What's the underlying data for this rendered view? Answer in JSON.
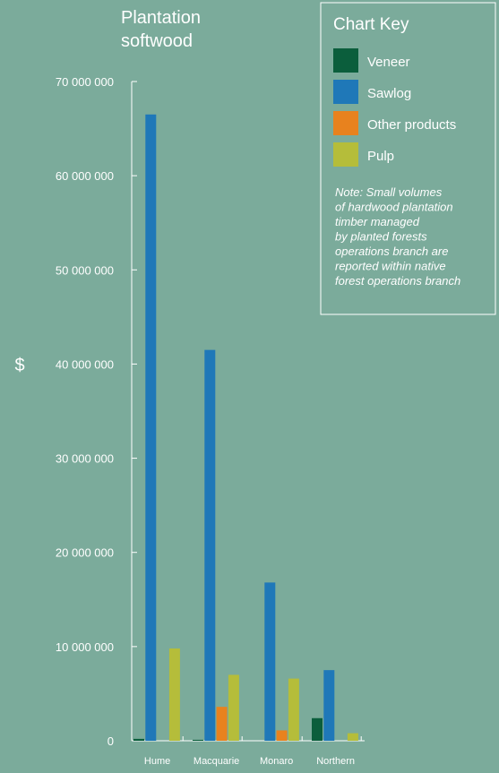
{
  "chart_data": {
    "type": "bar",
    "title": "Plantation softwood",
    "title_lines": [
      "Plantation",
      "softwood"
    ],
    "ylabel": "$",
    "xlabel": "",
    "categories": [
      "Hume",
      "Macquarie",
      "Monaro",
      "Northern"
    ],
    "series": [
      {
        "name": "Veneer",
        "color": "#0b5e3c",
        "values": [
          200000,
          100000,
          0,
          2400000
        ]
      },
      {
        "name": "Sawlog",
        "color": "#1f78b8",
        "values": [
          66500000,
          41500000,
          16800000,
          7500000
        ]
      },
      {
        "name": "Other products",
        "color": "#e8821e",
        "values": [
          0,
          3600000,
          1100000,
          0
        ]
      },
      {
        "name": "Pulp",
        "color": "#b5bd3a",
        "values": [
          9800000,
          7000000,
          6600000,
          800000
        ]
      }
    ],
    "ylim": [
      0,
      70000000
    ],
    "yticks": [
      0,
      10000000,
      20000000,
      30000000,
      40000000,
      50000000,
      60000000,
      70000000
    ],
    "ytick_labels": [
      "0",
      "10 000 000",
      "20 000 000",
      "30 000 000",
      "40 000 000",
      "50 000 000",
      "60 000 000",
      "70 000 000"
    ],
    "grid": false,
    "legend": {
      "title": "Chart Key",
      "position": "top-right",
      "note_lines": [
        "Note: Small volumes",
        "of hardwood plantation",
        "timber managed",
        "by planted forests",
        "operations branch are",
        "reported within native",
        "forest operations branch"
      ]
    }
  }
}
